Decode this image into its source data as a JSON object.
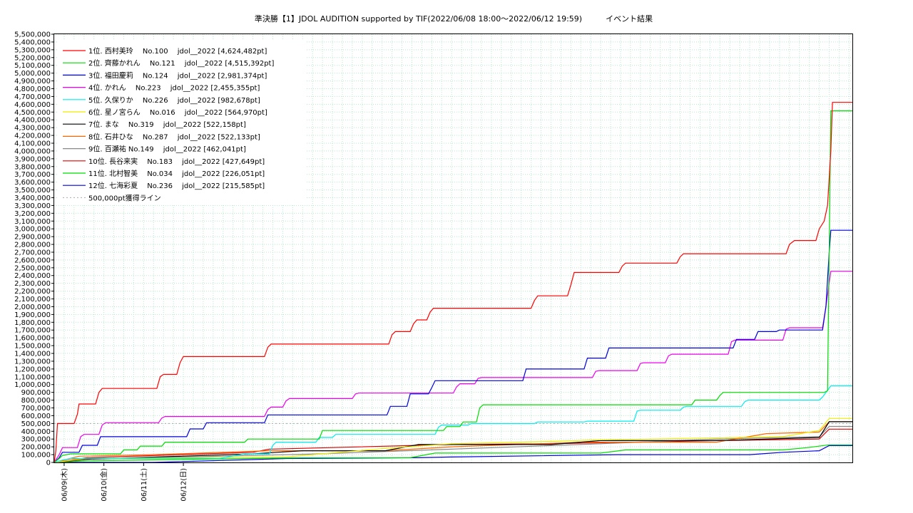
{
  "chart_data": {
    "type": "line",
    "title": "準決勝【1】JDOL AUDITION supported by TIF(2022/06/08 18:00～2022/06/12 19:59)　　　イベント結果",
    "xlabel": "",
    "ylabel": "",
    "x_tick_labels": [
      "06/09(木)",
      "06/10(金)",
      "06/11(土)",
      "06/12(日)"
    ],
    "ylim": [
      0,
      5500000
    ],
    "ytick_step": 100000,
    "grid": true,
    "legend_placement": "top-left",
    "reference_line": {
      "label": "500,000pt獲得ライン",
      "value": 500000,
      "color": "#aaaaaa"
    },
    "series": [
      {
        "name": "1位. 西村美玲　 No.100　 jdol__2022 [4,624,482pt]",
        "color": "#ff0000",
        "points": [
          [
            0,
            0
          ],
          [
            1,
            150000
          ],
          [
            2,
            500000
          ],
          [
            12,
            500000
          ],
          [
            14,
            620000
          ],
          [
            15,
            750000
          ],
          [
            25,
            750000
          ],
          [
            27,
            900000
          ],
          [
            29,
            950000
          ],
          [
            62,
            950000
          ],
          [
            64,
            1100000
          ],
          [
            66,
            1130000
          ],
          [
            74,
            1130000
          ],
          [
            76,
            1280000
          ],
          [
            78,
            1360000
          ],
          [
            127,
            1360000
          ],
          [
            129,
            1480000
          ],
          [
            131,
            1520000
          ],
          [
            202,
            1520000
          ],
          [
            204,
            1640000
          ],
          [
            206,
            1680000
          ],
          [
            215,
            1680000
          ],
          [
            217,
            1780000
          ],
          [
            219,
            1830000
          ],
          [
            225,
            1830000
          ],
          [
            227,
            1930000
          ],
          [
            229,
            1980000
          ],
          [
            288,
            1980000
          ],
          [
            290,
            2080000
          ],
          [
            292,
            2140000
          ],
          [
            310,
            2140000
          ],
          [
            312,
            2280000
          ],
          [
            314,
            2440000
          ],
          [
            341,
            2440000
          ],
          [
            343,
            2520000
          ],
          [
            345,
            2560000
          ],
          [
            376,
            2560000
          ],
          [
            378,
            2640000
          ],
          [
            380,
            2680000
          ],
          [
            442,
            2680000
          ],
          [
            444,
            2800000
          ],
          [
            447,
            2850000
          ],
          [
            460,
            2850000
          ],
          [
            462,
            3000000
          ],
          [
            465,
            3100000
          ],
          [
            467,
            3300000
          ],
          [
            469,
            4000000
          ],
          [
            470,
            4624482
          ],
          [
            482,
            4624482
          ]
        ]
      },
      {
        "name": "2位. 齊藤かれん　 No.121　 jdol__2022 [4,515,392pt]",
        "color": "#00dd00",
        "points": [
          [
            0,
            0
          ],
          [
            3,
            50000
          ],
          [
            5,
            90000
          ],
          [
            10,
            110000
          ],
          [
            40,
            110000
          ],
          [
            42,
            160000
          ],
          [
            50,
            160000
          ],
          [
            52,
            210000
          ],
          [
            65,
            210000
          ],
          [
            67,
            260000
          ],
          [
            115,
            260000
          ],
          [
            117,
            300000
          ],
          [
            160,
            300000
          ],
          [
            162,
            410000
          ],
          [
            235,
            410000
          ],
          [
            237,
            460000
          ],
          [
            245,
            460000
          ],
          [
            247,
            520000
          ],
          [
            255,
            520000
          ],
          [
            257,
            700000
          ],
          [
            259,
            740000
          ],
          [
            385,
            740000
          ],
          [
            387,
            800000
          ],
          [
            400,
            800000
          ],
          [
            402,
            860000
          ],
          [
            404,
            900000
          ],
          [
            465,
            900000
          ],
          [
            467,
            920000
          ],
          [
            469,
            4515392
          ],
          [
            482,
            4515392
          ]
        ]
      },
      {
        "name": "3位. 福田慶莉　 No.124　 jdol__2022 [2,981,374pt]",
        "color": "#0000dd",
        "points": [
          [
            0,
            0
          ],
          [
            3,
            60000
          ],
          [
            5,
            130000
          ],
          [
            15,
            130000
          ],
          [
            17,
            220000
          ],
          [
            26,
            220000
          ],
          [
            28,
            330000
          ],
          [
            80,
            330000
          ],
          [
            82,
            430000
          ],
          [
            90,
            430000
          ],
          [
            92,
            510000
          ],
          [
            127,
            510000
          ],
          [
            129,
            610000
          ],
          [
            201,
            610000
          ],
          [
            203,
            720000
          ],
          [
            213,
            720000
          ],
          [
            215,
            880000
          ],
          [
            226,
            880000
          ],
          [
            228,
            960000
          ],
          [
            230,
            1050000
          ],
          [
            283,
            1050000
          ],
          [
            285,
            1200000
          ],
          [
            320,
            1200000
          ],
          [
            322,
            1340000
          ],
          [
            333,
            1340000
          ],
          [
            335,
            1470000
          ],
          [
            410,
            1470000
          ],
          [
            412,
            1580000
          ],
          [
            423,
            1580000
          ],
          [
            425,
            1680000
          ],
          [
            436,
            1680000
          ],
          [
            438,
            1700000
          ],
          [
            464,
            1700000
          ],
          [
            466,
            2000000
          ],
          [
            468,
            2700000
          ],
          [
            469,
            2981374
          ],
          [
            482,
            2981374
          ]
        ]
      },
      {
        "name": "4位. かれん　 No.223　 jdol__2022 [2,455,355pt]",
        "color": "#ee00ee",
        "points": [
          [
            0,
            0
          ],
          [
            3,
            100000
          ],
          [
            5,
            190000
          ],
          [
            14,
            190000
          ],
          [
            16,
            330000
          ],
          [
            18,
            360000
          ],
          [
            27,
            360000
          ],
          [
            29,
            480000
          ],
          [
            31,
            510000
          ],
          [
            63,
            510000
          ],
          [
            65,
            570000
          ],
          [
            67,
            590000
          ],
          [
            127,
            590000
          ],
          [
            129,
            680000
          ],
          [
            131,
            710000
          ],
          [
            138,
            710000
          ],
          [
            140,
            790000
          ],
          [
            142,
            820000
          ],
          [
            180,
            820000
          ],
          [
            182,
            880000
          ],
          [
            184,
            890000
          ],
          [
            241,
            890000
          ],
          [
            243,
            970000
          ],
          [
            245,
            1010000
          ],
          [
            254,
            1010000
          ],
          [
            256,
            1080000
          ],
          [
            258,
            1090000
          ],
          [
            325,
            1090000
          ],
          [
            327,
            1170000
          ],
          [
            329,
            1180000
          ],
          [
            352,
            1180000
          ],
          [
            354,
            1270000
          ],
          [
            356,
            1280000
          ],
          [
            369,
            1280000
          ],
          [
            371,
            1370000
          ],
          [
            373,
            1390000
          ],
          [
            407,
            1390000
          ],
          [
            409,
            1550000
          ],
          [
            411,
            1570000
          ],
          [
            440,
            1570000
          ],
          [
            442,
            1710000
          ],
          [
            444,
            1730000
          ],
          [
            464,
            1730000
          ],
          [
            466,
            2000000
          ],
          [
            469,
            2455355
          ],
          [
            482,
            2455355
          ]
        ]
      },
      {
        "name": "5位. 久保りか　 No.226　 jdol__2022 [982,678pt]",
        "color": "#00eeee",
        "points": [
          [
            0,
            0
          ],
          [
            5,
            30000
          ],
          [
            10,
            50000
          ],
          [
            100,
            50000
          ],
          [
            115,
            110000
          ],
          [
            130,
            110000
          ],
          [
            132,
            220000
          ],
          [
            134,
            260000
          ],
          [
            158,
            260000
          ],
          [
            160,
            320000
          ],
          [
            168,
            320000
          ],
          [
            170,
            360000
          ],
          [
            230,
            360000
          ],
          [
            232,
            450000
          ],
          [
            234,
            480000
          ],
          [
            250,
            480000
          ],
          [
            252,
            500000
          ],
          [
            290,
            500000
          ],
          [
            292,
            520000
          ],
          [
            320,
            520000
          ],
          [
            322,
            530000
          ],
          [
            350,
            530000
          ],
          [
            352,
            660000
          ],
          [
            354,
            670000
          ],
          [
            378,
            670000
          ],
          [
            380,
            710000
          ],
          [
            382,
            720000
          ],
          [
            415,
            720000
          ],
          [
            417,
            780000
          ],
          [
            419,
            800000
          ],
          [
            462,
            800000
          ],
          [
            464,
            840000
          ],
          [
            469,
            982678
          ],
          [
            482,
            982678
          ]
        ]
      },
      {
        "name": "6位. 星ノ宮らん　 No.016　 jdol__2022 [564,970pt]",
        "color": "#eeee00",
        "points": [
          [
            0,
            0
          ],
          [
            20,
            50000
          ],
          [
            140,
            70000
          ],
          [
            200,
            180000
          ],
          [
            240,
            240000
          ],
          [
            300,
            270000
          ],
          [
            330,
            290000
          ],
          [
            360,
            300000
          ],
          [
            440,
            330000
          ],
          [
            462,
            410000
          ],
          [
            468,
            564970
          ],
          [
            482,
            564970
          ]
        ]
      },
      {
        "name": "7位. まな　 No.319　 jdol__2022 [522,158pt]",
        "color": "#000000",
        "points": [
          [
            0,
            0
          ],
          [
            20,
            40000
          ],
          [
            120,
            110000
          ],
          [
            150,
            150000
          ],
          [
            200,
            150000
          ],
          [
            220,
            230000
          ],
          [
            300,
            230000
          ],
          [
            330,
            280000
          ],
          [
            400,
            280000
          ],
          [
            462,
            320000
          ],
          [
            468,
            522158
          ],
          [
            482,
            522158
          ]
        ]
      },
      {
        "name": "8位. 石井ひな　 No.287　 jdol__2022 [522,133pt]",
        "color": "#ff6600",
        "points": [
          [
            0,
            0
          ],
          [
            15,
            80000
          ],
          [
            60,
            100000
          ],
          [
            130,
            150000
          ],
          [
            200,
            150000
          ],
          [
            240,
            200000
          ],
          [
            320,
            260000
          ],
          [
            400,
            260000
          ],
          [
            430,
            370000
          ],
          [
            462,
            390000
          ],
          [
            468,
            522133
          ],
          [
            482,
            522133
          ]
        ]
      },
      {
        "name": "9位. 百瀬祐 No.149　 jdol__2022 [462,041pt]",
        "color": "#888888",
        "points": [
          [
            0,
            0
          ],
          [
            20,
            40000
          ],
          [
            100,
            80000
          ],
          [
            160,
            110000
          ],
          [
            240,
            170000
          ],
          [
            330,
            240000
          ],
          [
            400,
            300000
          ],
          [
            462,
            330000
          ],
          [
            468,
            462041
          ],
          [
            482,
            462041
          ]
        ]
      },
      {
        "name": "10位. 長谷来実　 No.183　 jdol__2022 [427,649pt]",
        "color": "#dd0000",
        "points": [
          [
            0,
            0
          ],
          [
            20,
            60000
          ],
          [
            120,
            130000
          ],
          [
            130,
            170000
          ],
          [
            240,
            230000
          ],
          [
            300,
            240000
          ],
          [
            400,
            280000
          ],
          [
            462,
            300000
          ],
          [
            468,
            427649
          ],
          [
            482,
            427649
          ]
        ]
      },
      {
        "name": "11位. 北村智美　 No.034　 jdol__2022 [226,051pt]",
        "color": "#00dd00",
        "points": [
          [
            0,
            0
          ],
          [
            20,
            20000
          ],
          [
            150,
            60000
          ],
          [
            215,
            60000
          ],
          [
            230,
            120000
          ],
          [
            330,
            120000
          ],
          [
            345,
            160000
          ],
          [
            440,
            160000
          ],
          [
            455,
            190000
          ],
          [
            468,
            226051
          ],
          [
            482,
            226051
          ]
        ]
      },
      {
        "name": "12位. 七海彩夏　 No.236　 jdol__2022 [215,585pt]",
        "color": "#0000dd",
        "points": [
          [
            0,
            0
          ],
          [
            60,
            0
          ],
          [
            110,
            30000
          ],
          [
            140,
            50000
          ],
          [
            220,
            60000
          ],
          [
            240,
            70000
          ],
          [
            340,
            100000
          ],
          [
            420,
            100000
          ],
          [
            440,
            130000
          ],
          [
            462,
            150000
          ],
          [
            468,
            215585
          ],
          [
            482,
            215585
          ]
        ]
      }
    ]
  }
}
